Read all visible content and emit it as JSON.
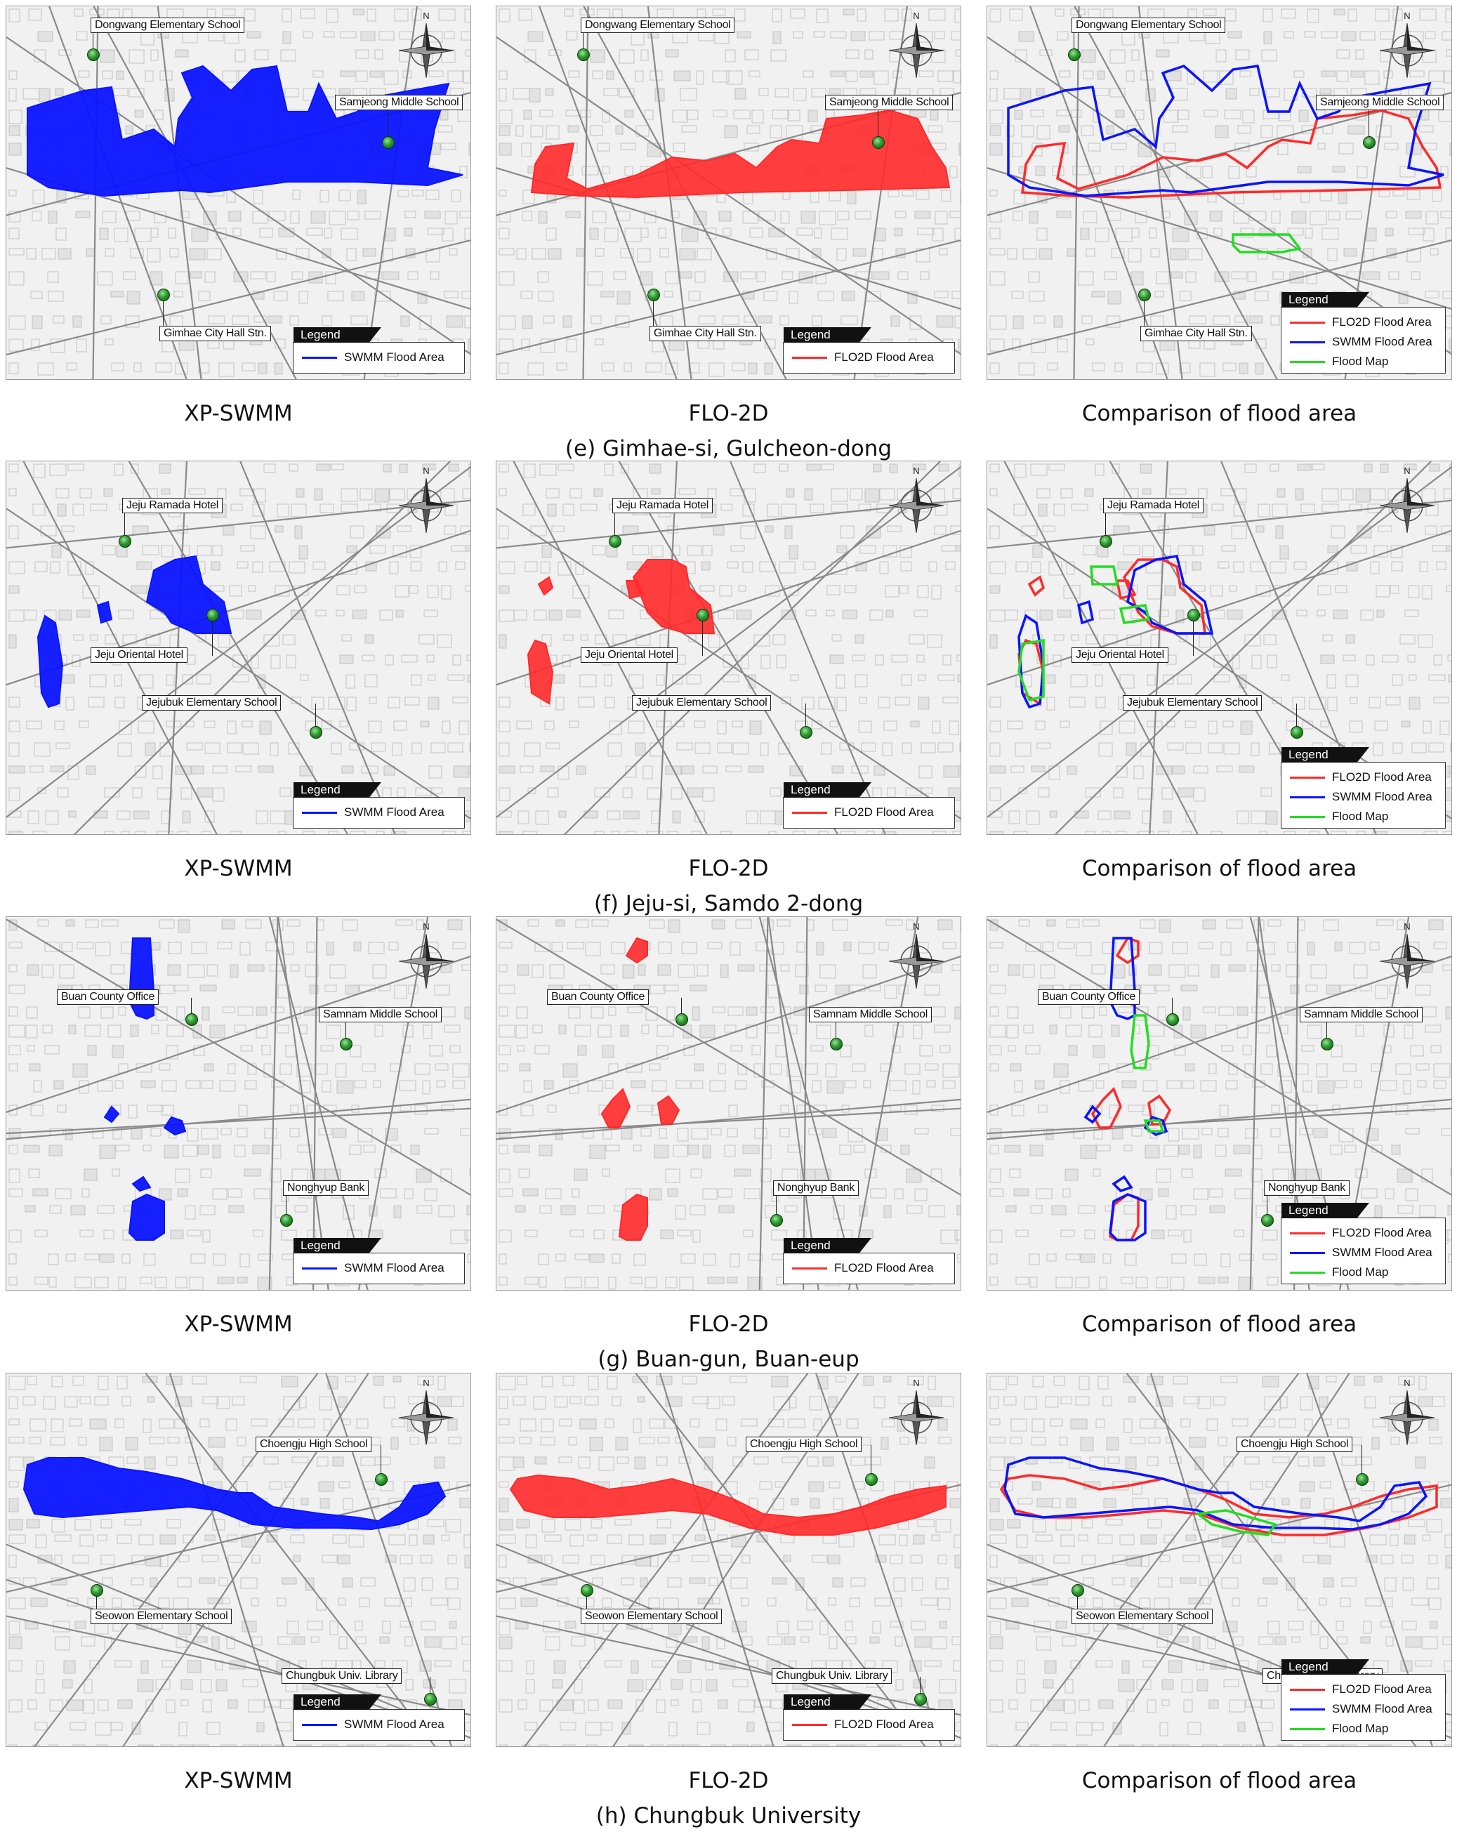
{
  "captions": {
    "xp": "XP-SWMM",
    "flo": "FLO-2D",
    "cmp": "Comparison of flood area"
  },
  "legend": {
    "title": "Legend",
    "swmm": "SWMM Flood Area",
    "flo2d": "FLO2D Flood Area",
    "flood_map": "Flood Map"
  },
  "compass_label": "N",
  "colors": {
    "swmm": "#0a14ff",
    "flo2d": "#ff2a2a",
    "flood_map": "#22dd22",
    "landmark": "#2d9a2d"
  },
  "rows": [
    {
      "title": "(e) Gimhae-si, Gulcheon-dong",
      "landmarks": [
        "Dongwang Elementary School",
        "Samjeong Middle School",
        "Gimhae City Hall Stn."
      ]
    },
    {
      "title": "(f) Jeju-si, Samdo 2-dong",
      "landmarks": [
        "Jeju Ramada Hotel",
        "Jeju Oriental Hotel",
        "Jejubuk Elementary School"
      ]
    },
    {
      "title": "(g) Buan-gun, Buan-eup",
      "landmarks": [
        "Buan County Office",
        "Samnam Middle School",
        "Nonghyup Bank"
      ]
    },
    {
      "title": "(h) Chungbuk University",
      "landmarks": [
        "Choengju High School",
        "Seowon Elementary School",
        "Chungbuk Univ. Library"
      ]
    }
  ]
}
